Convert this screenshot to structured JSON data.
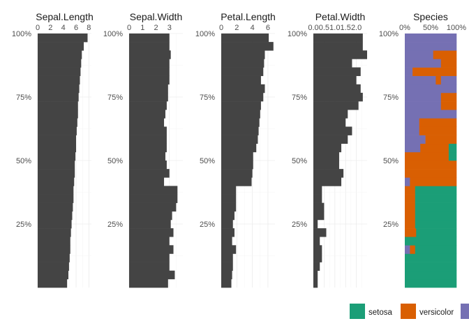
{
  "chart_data": {
    "type": "bar",
    "orientation": "horizontal",
    "description_axis": "cumulative percentage of rows, sorted",
    "y_tick_labels": [
      "100%",
      "75%",
      "50%",
      "25%"
    ],
    "y_tick_values": [
      100,
      75,
      50,
      25
    ],
    "bar_color": "#444444",
    "panels": [
      {
        "title": "Sepal.Length",
        "x_ticks": [
          0,
          2,
          4,
          6,
          8
        ],
        "x_tick_labels": [
          "0",
          "2",
          "4",
          "6",
          "8"
        ],
        "xlim": [
          0,
          8.4
        ],
        "values": [
          4.6,
          4.8,
          4.9,
          5.0,
          5.1,
          5.1,
          5.2,
          5.3,
          5.4,
          5.5,
          5.6,
          5.6,
          5.7,
          5.8,
          5.8,
          5.9,
          6.0,
          6.0,
          6.1,
          6.2,
          6.3,
          6.3,
          6.4,
          6.5,
          6.6,
          6.7,
          6.8,
          6.9,
          7.2,
          7.8
        ]
      },
      {
        "title": "Sepal.Width",
        "x_ticks": [
          0,
          1,
          2,
          3
        ],
        "x_tick_labels": [
          "0",
          "1",
          "2",
          "3"
        ],
        "xlim": [
          0,
          4.0
        ],
        "values": [
          2.9,
          3.4,
          3.0,
          3.0,
          3.3,
          3.0,
          3.3,
          3.1,
          3.2,
          3.5,
          3.6,
          3.6,
          2.6,
          3.0,
          2.8,
          2.7,
          2.8,
          2.8,
          2.8,
          2.6,
          2.7,
          2.8,
          2.9,
          2.9,
          3.0,
          3.0,
          3.0,
          3.1,
          3.0,
          3.0
        ]
      },
      {
        "title": "Petal.Length",
        "x_ticks": [
          0,
          2,
          4,
          6
        ],
        "x_tick_labels": [
          "0",
          "2",
          "4",
          "6"
        ],
        "xlim": [
          0,
          6.9
        ],
        "values": [
          1.3,
          1.4,
          1.5,
          1.5,
          1.9,
          1.4,
          1.7,
          1.5,
          1.7,
          1.9,
          1.9,
          1.9,
          3.9,
          4.0,
          4.1,
          4.1,
          4.5,
          4.7,
          4.8,
          4.9,
          5.0,
          5.1,
          5.4,
          5.6,
          5.1,
          5.4,
          5.5,
          5.6,
          6.7,
          6.1
        ]
      },
      {
        "title": "Petal.Width",
        "x_ticks": [
          0,
          0.5,
          1,
          1.5,
          2
        ],
        "x_tick_labels": [
          "0.0",
          "0.5",
          "1.0",
          "1.5",
          "2.0"
        ],
        "xlim": [
          0,
          2.5
        ],
        "values": [
          0.2,
          0.2,
          0.3,
          0.4,
          0.4,
          0.3,
          0.6,
          0.2,
          0.5,
          0.5,
          0.4,
          0.4,
          1.3,
          1.4,
          1.2,
          1.2,
          1.3,
          1.6,
          1.8,
          1.5,
          1.6,
          2.1,
          2.3,
          2.2,
          2.0,
          2.2,
          1.8,
          2.5,
          2.3,
          2.3
        ]
      }
    ],
    "species_panel": {
      "title": "Species",
      "x_ticks": [
        0,
        50,
        100
      ],
      "x_tick_labels": [
        "0%",
        "50%",
        "100%"
      ],
      "categories": [
        "setosa",
        "versicolor",
        "virginica"
      ],
      "colors": {
        "setosa": "#1b9e77",
        "versicolor": "#d95f02",
        "virginica": "#7570b3"
      },
      "rows": [
        [
          [
            "setosa",
            100
          ]
        ],
        [
          [
            "setosa",
            100
          ]
        ],
        [
          [
            "setosa",
            100
          ]
        ],
        [
          [
            "setosa",
            100
          ]
        ],
        [
          [
            "virginica",
            10
          ],
          [
            "versicolor",
            10
          ],
          [
            "setosa",
            80
          ]
        ],
        [
          [
            "setosa",
            100
          ]
        ],
        [
          [
            "versicolor",
            22
          ],
          [
            "setosa",
            78
          ]
        ],
        [
          [
            "versicolor",
            20
          ],
          [
            "setosa",
            80
          ]
        ],
        [
          [
            "versicolor",
            20
          ],
          [
            "setosa",
            80
          ]
        ],
        [
          [
            "versicolor",
            20
          ],
          [
            "setosa",
            80
          ]
        ],
        [
          [
            "versicolor",
            20
          ],
          [
            "setosa",
            80
          ]
        ],
        [
          [
            "versicolor",
            20
          ],
          [
            "setosa",
            80
          ]
        ],
        [
          [
            "virginica",
            10
          ],
          [
            "versicolor",
            90
          ]
        ],
        [
          [
            "versicolor",
            100
          ]
        ],
        [
          [
            "versicolor",
            100
          ]
        ],
        [
          [
            "versicolor",
            85
          ],
          [
            "setosa",
            15
          ]
        ],
        [
          [
            "virginica",
            30
          ],
          [
            "versicolor",
            55
          ],
          [
            "setosa",
            15
          ]
        ],
        [
          [
            "virginica",
            40
          ],
          [
            "versicolor",
            60
          ]
        ],
        [
          [
            "virginica",
            28
          ],
          [
            "versicolor",
            72
          ]
        ],
        [
          [
            "virginica",
            28
          ],
          [
            "versicolor",
            72
          ]
        ],
        [
          [
            "virginica",
            100
          ]
        ],
        [
          [
            "virginica",
            70
          ],
          [
            "versicolor",
            30
          ]
        ],
        [
          [
            "virginica",
            70
          ],
          [
            "versicolor",
            30
          ]
        ],
        [
          [
            "virginica",
            100
          ]
        ],
        [
          [
            "virginica",
            60
          ],
          [
            "versicolor",
            10
          ],
          [
            "virginica",
            30
          ]
        ],
        [
          [
            "virginica",
            15
          ],
          [
            "versicolor",
            85
          ]
        ],
        [
          [
            "virginica",
            70
          ],
          [
            "versicolor",
            30
          ]
        ],
        [
          [
            "virginica",
            55
          ],
          [
            "versicolor",
            45
          ]
        ],
        [
          [
            "virginica",
            100
          ]
        ],
        [
          [
            "virginica",
            100
          ]
        ]
      ]
    },
    "legend": {
      "placement": "bottom",
      "items": [
        "setosa",
        "versicolor"
      ],
      "extra_swatch": "virginica"
    }
  }
}
